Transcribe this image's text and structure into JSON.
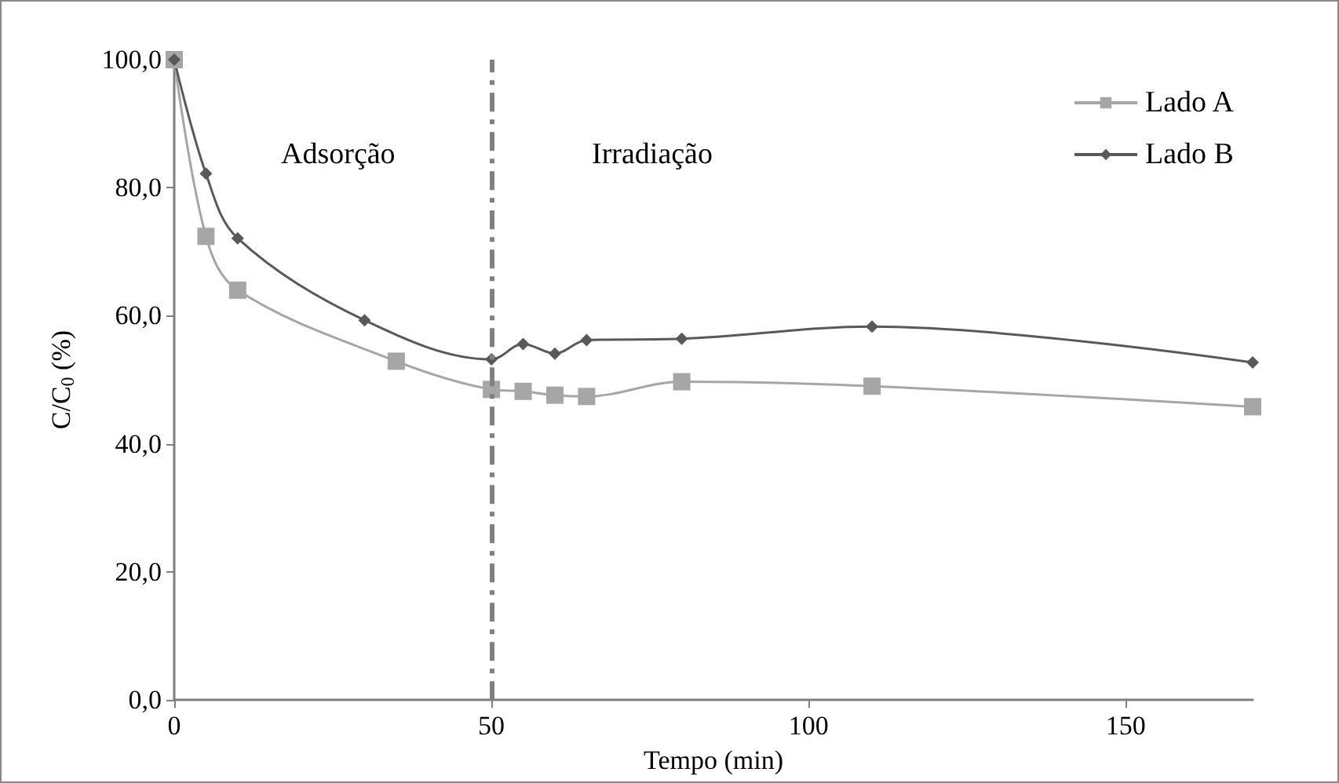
{
  "chart_data": {
    "type": "line",
    "xlabel": "Tempo (min)",
    "ylabel": "C/C$_{0}$ (%)",
    "xlim": [
      0,
      170
    ],
    "xticks": [
      0,
      50,
      100,
      150
    ],
    "ylim": [
      0,
      100
    ],
    "yticks": [
      {
        "value": 0,
        "label": "0,0"
      },
      {
        "value": 20,
        "label": "20,0"
      },
      {
        "value": 40,
        "label": "40,0"
      },
      {
        "value": 60,
        "label": "60,0"
      },
      {
        "value": 80,
        "label": "80,0"
      },
      {
        "value": 100,
        "label": "100,0"
      }
    ],
    "series": [
      {
        "name": "Lado A",
        "color": "#a6a6a6",
        "marker": "square",
        "x": [
          0,
          5,
          10,
          35,
          50,
          55,
          60,
          65,
          80,
          110,
          170
        ],
        "values": [
          100,
          72.4,
          64.0,
          52.9,
          48.5,
          48.2,
          47.6,
          47.4,
          49.7,
          49.0,
          45.8
        ]
      },
      {
        "name": "Lado B",
        "color": "#595959",
        "marker": "diamond",
        "x": [
          0,
          5,
          10,
          30,
          50,
          55,
          60,
          65,
          80,
          110,
          170
        ],
        "values": [
          100,
          82.2,
          72.1,
          59.3,
          53.2,
          55.6,
          54.1,
          56.2,
          56.4,
          58.3,
          52.7
        ]
      }
    ],
    "ref_lines": [
      {
        "axis": "x",
        "value": 50,
        "color": "#808080",
        "line_style": "dashed"
      }
    ],
    "annotations": [
      "Adsorção",
      "Irradiação"
    ],
    "grid": false,
    "legend": "top right"
  }
}
